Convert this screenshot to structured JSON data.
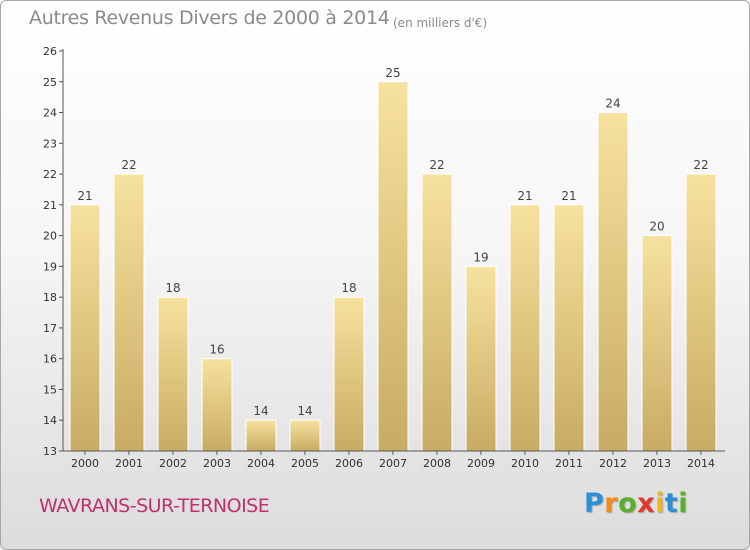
{
  "chart_data": {
    "type": "bar",
    "title": "Autres Revenus Divers de 2000 à 2014",
    "subtitle": "(en milliers d'€)",
    "categories": [
      "2000",
      "2001",
      "2002",
      "2003",
      "2004",
      "2005",
      "2006",
      "2007",
      "2008",
      "2009",
      "2010",
      "2011",
      "2012",
      "2013",
      "2014"
    ],
    "values": [
      21,
      22,
      18,
      16,
      14,
      14,
      18,
      25,
      22,
      19,
      21,
      21,
      24,
      20,
      22
    ],
    "data_labels": [
      "21",
      "22",
      "18",
      "16",
      "14",
      "14",
      "18",
      "25",
      "22",
      "19",
      "21",
      "21",
      "24",
      "20",
      "22"
    ],
    "ylim": [
      13,
      26
    ],
    "y_ticks": [
      "13",
      "14",
      "15",
      "16",
      "17",
      "18",
      "19",
      "20",
      "21",
      "22",
      "23",
      "24",
      "25",
      "26"
    ],
    "xlabel": "",
    "ylabel": "",
    "grid": false,
    "legend": false,
    "bar_color_light": "#f6e29e",
    "bar_color_dark": "#c8ab64"
  },
  "footer": {
    "commune": "WAVRANS-SUR-TERNOISE"
  },
  "brand": {
    "letters": [
      "P",
      "r",
      "o",
      "x",
      "i",
      "t",
      "i"
    ],
    "colors": [
      "#2b8fd6",
      "#f08a1c",
      "#5aae2e",
      "#e03a2c",
      "#f0b51c",
      "#2b8fd6",
      "#5aae2e"
    ]
  }
}
